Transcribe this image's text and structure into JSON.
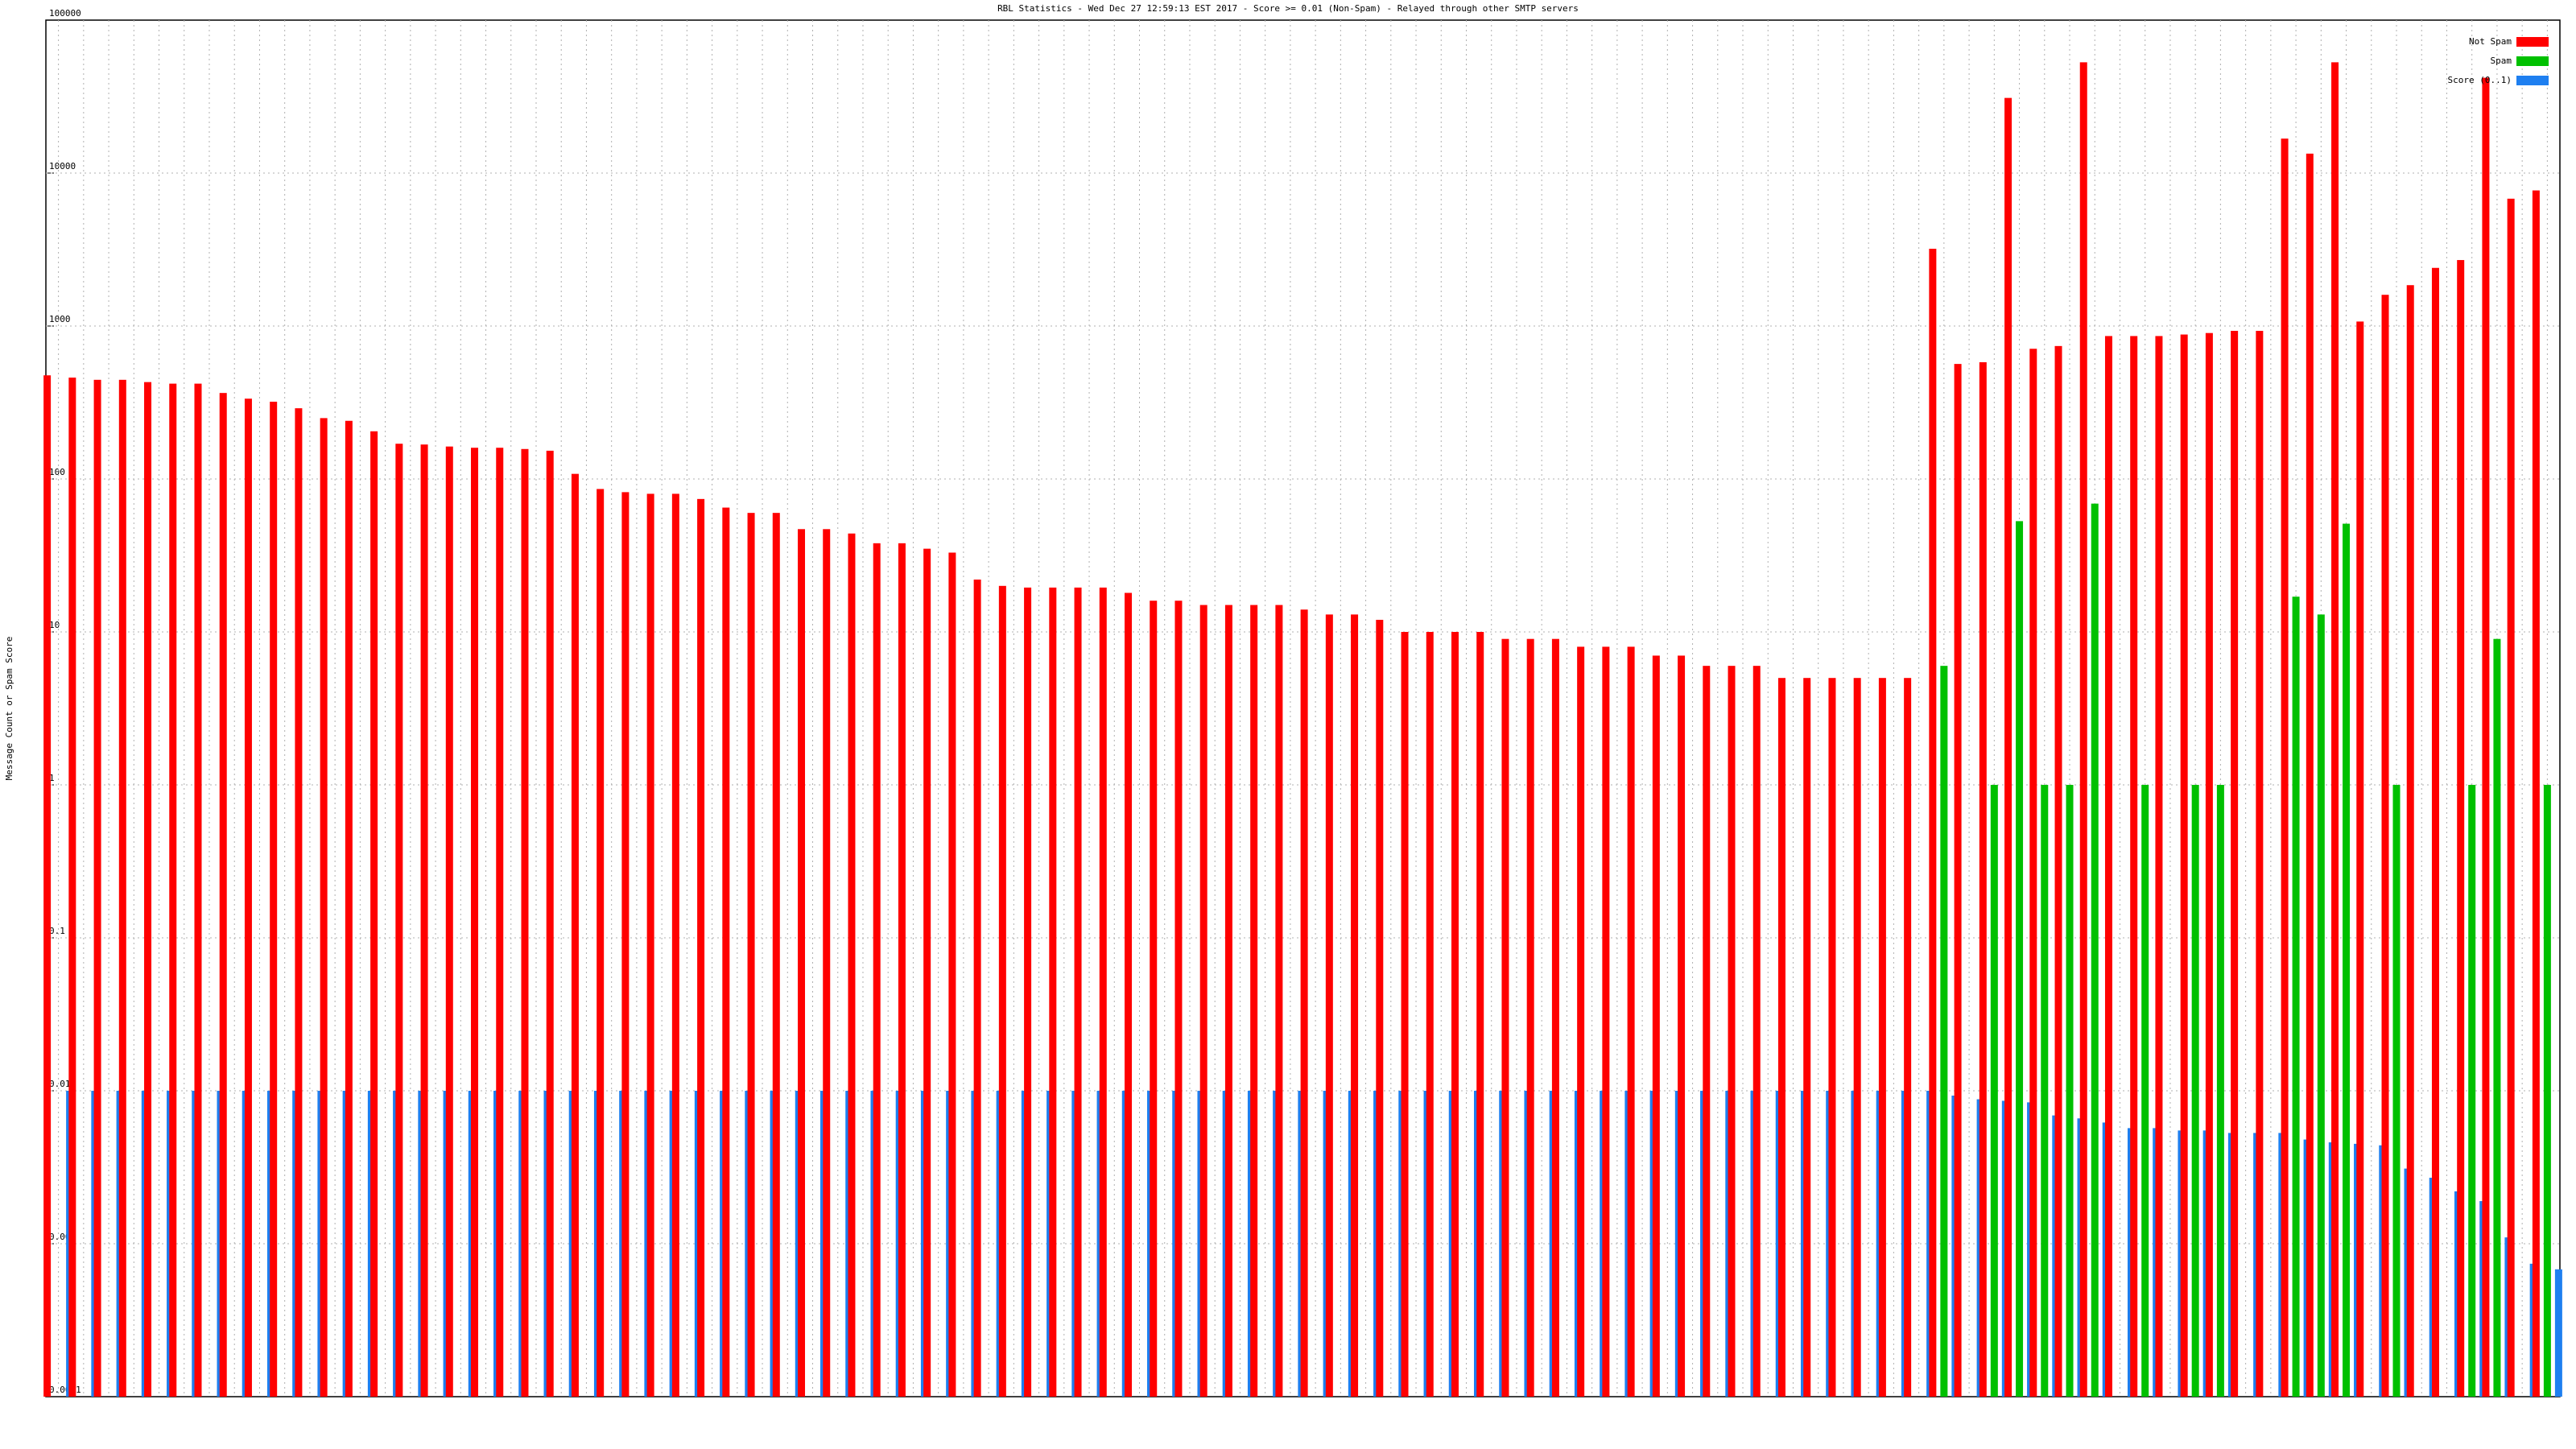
{
  "chart_data": {
    "type": "bar",
    "title": "RBL Statistics - Wed Dec 27 12:59:13 EST 2017 - Score >= 0.01 (Non-Spam) - Relayed through other SMTP servers",
    "y_label": "Message Count or Spam Score",
    "log_scale": true,
    "grid": true,
    "legend": "top-right",
    "categories": [
      null,
      null,
      null,
      null,
      null,
      null,
      null,
      null,
      null,
      null,
      null,
      null,
      null,
      null,
      null,
      null,
      null,
      null,
      null,
      null,
      null,
      null,
      null,
      null,
      null,
      null,
      null,
      null,
      null,
      null,
      null,
      null,
      null,
      null,
      null,
      null,
      null,
      null,
      null,
      null,
      null,
      null,
      null,
      null,
      null,
      null,
      null,
      null,
      null,
      null,
      null,
      null,
      null,
      null,
      null,
      null,
      null,
      null,
      null,
      null,
      null,
      null,
      null,
      null,
      null,
      null,
      null,
      null,
      null,
      null,
      null,
      null,
      null,
      null,
      null,
      null,
      null,
      null,
      null,
      null,
      null,
      null,
      null,
      null,
      null,
      null,
      null,
      null,
      null,
      null,
      null,
      null,
      null,
      null,
      null,
      null,
      null,
      null,
      null,
      null
    ],
    "series": [
      {
        "name": "Not Spam",
        "color": "#ff0000",
        "values": [
          476,
          460,
          445,
          445,
          430,
          420,
          420,
          365,
          335,
          320,
          290,
          250,
          240,
          205,
          170,
          168,
          163,
          160,
          160,
          157,
          153,
          108,
          86,
          82,
          80,
          80,
          74,
          65,
          60,
          60,
          47,
          47,
          44,
          38,
          38,
          35,
          33,
          22,
          20,
          19.5,
          19.5,
          19.5,
          19.5,
          18,
          16,
          16,
          15,
          15,
          15,
          15,
          14,
          13,
          13,
          12,
          10,
          10,
          10,
          10,
          9,
          9,
          9,
          8,
          8,
          8,
          7,
          7,
          6,
          6,
          6,
          5,
          5,
          5,
          5,
          5,
          5,
          3200,
          565,
          580,
          31000,
          710,
          740,
          53000,
          860,
          860,
          860,
          880,
          900,
          930,
          930,
          16800,
          13400,
          53000,
          1070,
          1600,
          1850,
          2400,
          2700,
          42000,
          6800,
          7700
        ]
      },
      {
        "name": "Spam",
        "color": "#00c000",
        "values": [
          null,
          null,
          null,
          null,
          null,
          null,
          null,
          null,
          null,
          null,
          null,
          null,
          null,
          null,
          null,
          null,
          null,
          null,
          null,
          null,
          null,
          null,
          null,
          null,
          null,
          null,
          null,
          null,
          null,
          null,
          null,
          null,
          null,
          null,
          null,
          null,
          null,
          null,
          null,
          null,
          null,
          null,
          null,
          null,
          null,
          null,
          null,
          null,
          null,
          null,
          null,
          null,
          null,
          null,
          null,
          null,
          null,
          null,
          null,
          null,
          null,
          null,
          null,
          null,
          null,
          null,
          null,
          null,
          null,
          null,
          null,
          null,
          null,
          null,
          null,
          6,
          null,
          1,
          53,
          1,
          1,
          69,
          null,
          1,
          null,
          1,
          1,
          null,
          null,
          17,
          13,
          51,
          null,
          1,
          null,
          null,
          1,
          9,
          null,
          1
        ]
      },
      {
        "name": "Score (0..1)",
        "color": "#1e7ff0",
        "values": [
          0.01,
          0.01,
          0.01,
          0.01,
          0.01,
          0.01,
          0.01,
          0.01,
          0.01,
          0.01,
          0.01,
          0.01,
          0.01,
          0.01,
          0.01,
          0.01,
          0.01,
          0.01,
          0.01,
          0.01,
          0.01,
          0.01,
          0.01,
          0.01,
          0.01,
          0.01,
          0.01,
          0.01,
          0.01,
          0.01,
          0.01,
          0.01,
          0.01,
          0.01,
          0.01,
          0.01,
          0.01,
          0.01,
          0.01,
          0.01,
          0.01,
          0.01,
          0.01,
          0.01,
          0.01,
          0.01,
          0.01,
          0.01,
          0.01,
          0.01,
          0.01,
          0.01,
          0.01,
          0.01,
          0.01,
          0.01,
          0.01,
          0.01,
          0.01,
          0.01,
          0.01,
          0.01,
          0.01,
          0.01,
          0.01,
          0.01,
          0.01,
          0.01,
          0.01,
          0.01,
          0.01,
          0.01,
          0.01,
          0.01,
          0.01,
          0.0093,
          0.0088,
          0.0086,
          0.0084,
          0.0069,
          0.0066,
          0.0062,
          0.0057,
          0.0057,
          0.0055,
          0.0055,
          0.0053,
          0.0053,
          0.0053,
          0.0048,
          0.0046,
          0.0045,
          0.0044,
          0.0031,
          0.0027,
          0.0022,
          0.0019,
          0.0011,
          0.00074,
          0.00068
        ]
      }
    ],
    "ylim": [
      0.0001,
      100000
    ],
    "yticks": [
      0.0001,
      0.001,
      0.01,
      0.1,
      1,
      10,
      100,
      1000,
      10000,
      100000
    ]
  }
}
